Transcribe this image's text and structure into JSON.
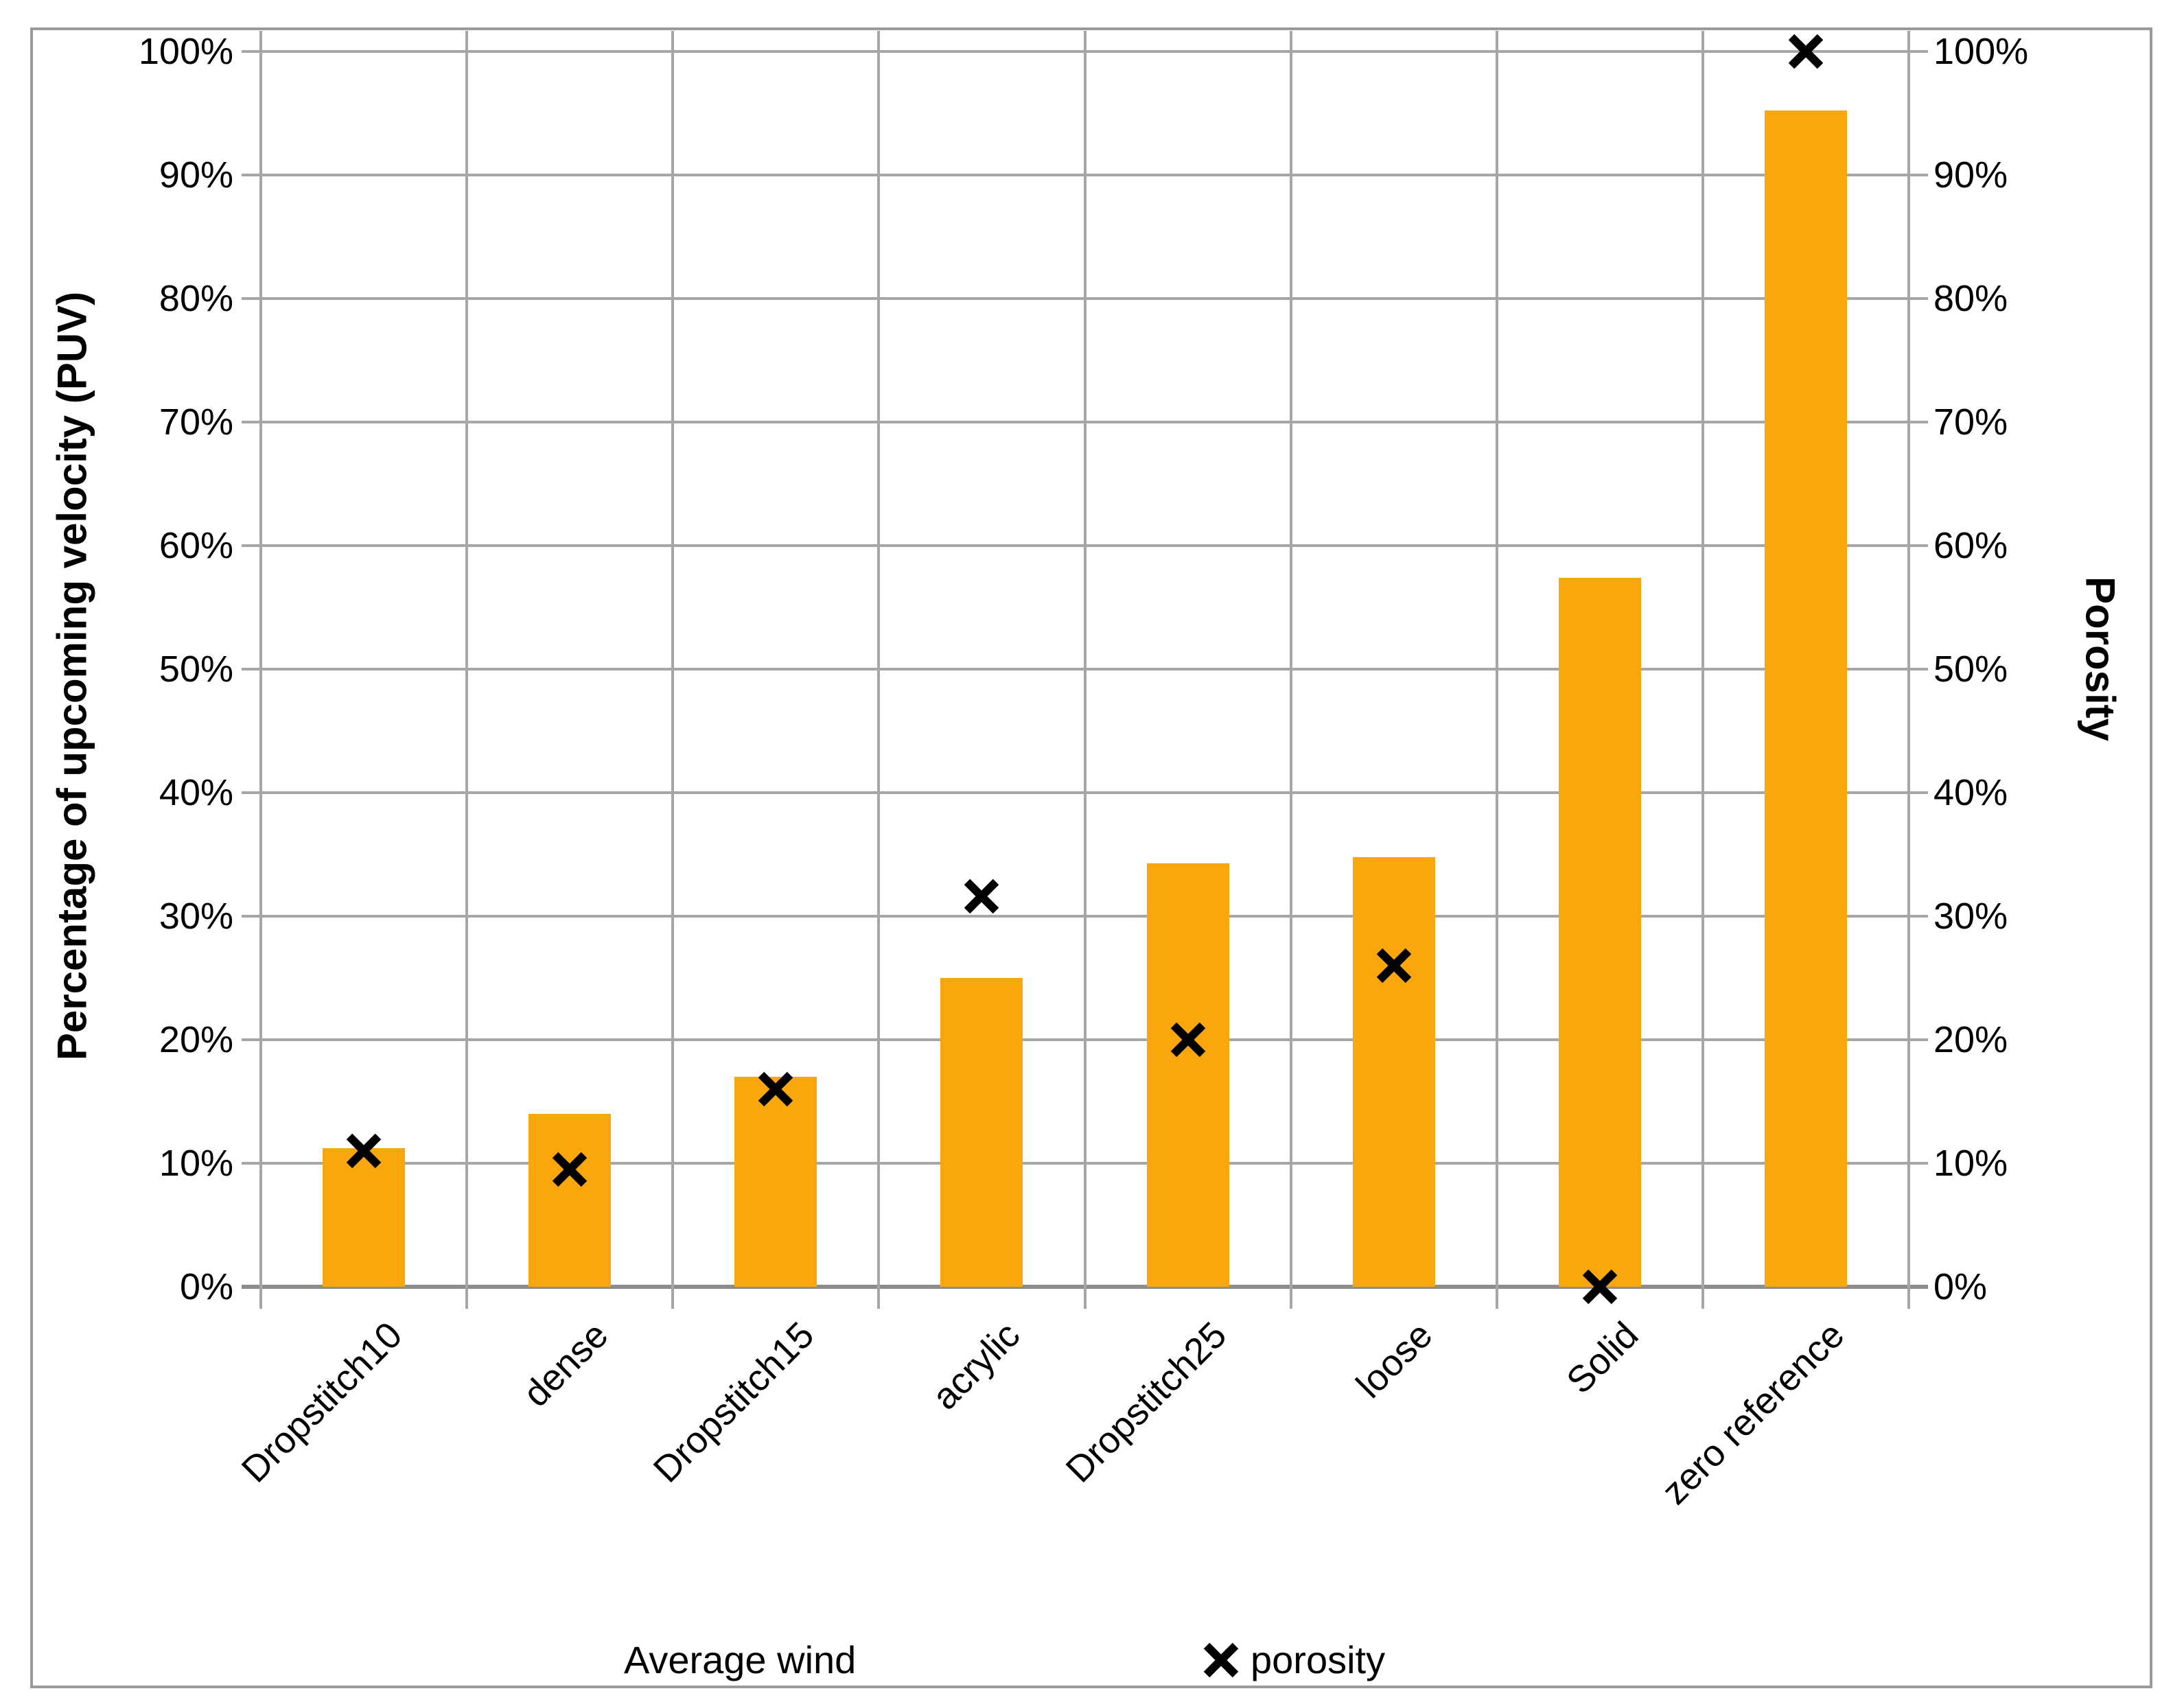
{
  "figure": {
    "background": "#FFFFFF",
    "border_color": "#9A9A9A",
    "gridline_color": "#A6A6A6",
    "baseline_color": "#8C8C8C"
  },
  "chart_data": {
    "type": "combo-bar-scatter",
    "categories": [
      "Dropstitch10",
      "dense",
      "Dropstitch15",
      "acrylic",
      "Dropstitch25",
      "loose",
      "Solid",
      "zero reference"
    ],
    "series": [
      {
        "name": "Average wind",
        "type": "bar",
        "axis": "left",
        "color": "#F9A70D",
        "values": [
          11.2,
          14,
          17,
          25,
          34.3,
          34.8,
          57.4,
          95.2
        ]
      },
      {
        "name": "porosity",
        "type": "scatter",
        "marker": "x",
        "axis": "right",
        "color": "#000000",
        "values": [
          11,
          9.5,
          16,
          31.6,
          20,
          26,
          0,
          100
        ]
      }
    ],
    "y_axis_left": {
      "label": "Percentage of upcoming velocity (PUV)",
      "min": 0,
      "max": 100,
      "tick_step": 10,
      "tick_labels": [
        "0%",
        "10%",
        "20%",
        "30%",
        "40%",
        "50%",
        "60%",
        "70%",
        "80%",
        "90%",
        "100%"
      ]
    },
    "y_axis_right": {
      "label": "Porosity",
      "min": 0,
      "max": 100,
      "tick_step": 10,
      "tick_labels": [
        "0%",
        "10%",
        "20%",
        "30%",
        "40%",
        "50%",
        "60%",
        "70%",
        "80%",
        "90%",
        "100%"
      ]
    },
    "x_axis": {
      "label_rotation_deg": -45
    },
    "grid": {
      "horizontal": true,
      "vertical": true
    },
    "legend": {
      "position": "bottom",
      "entries": [
        "Average wind",
        "porosity"
      ]
    }
  }
}
